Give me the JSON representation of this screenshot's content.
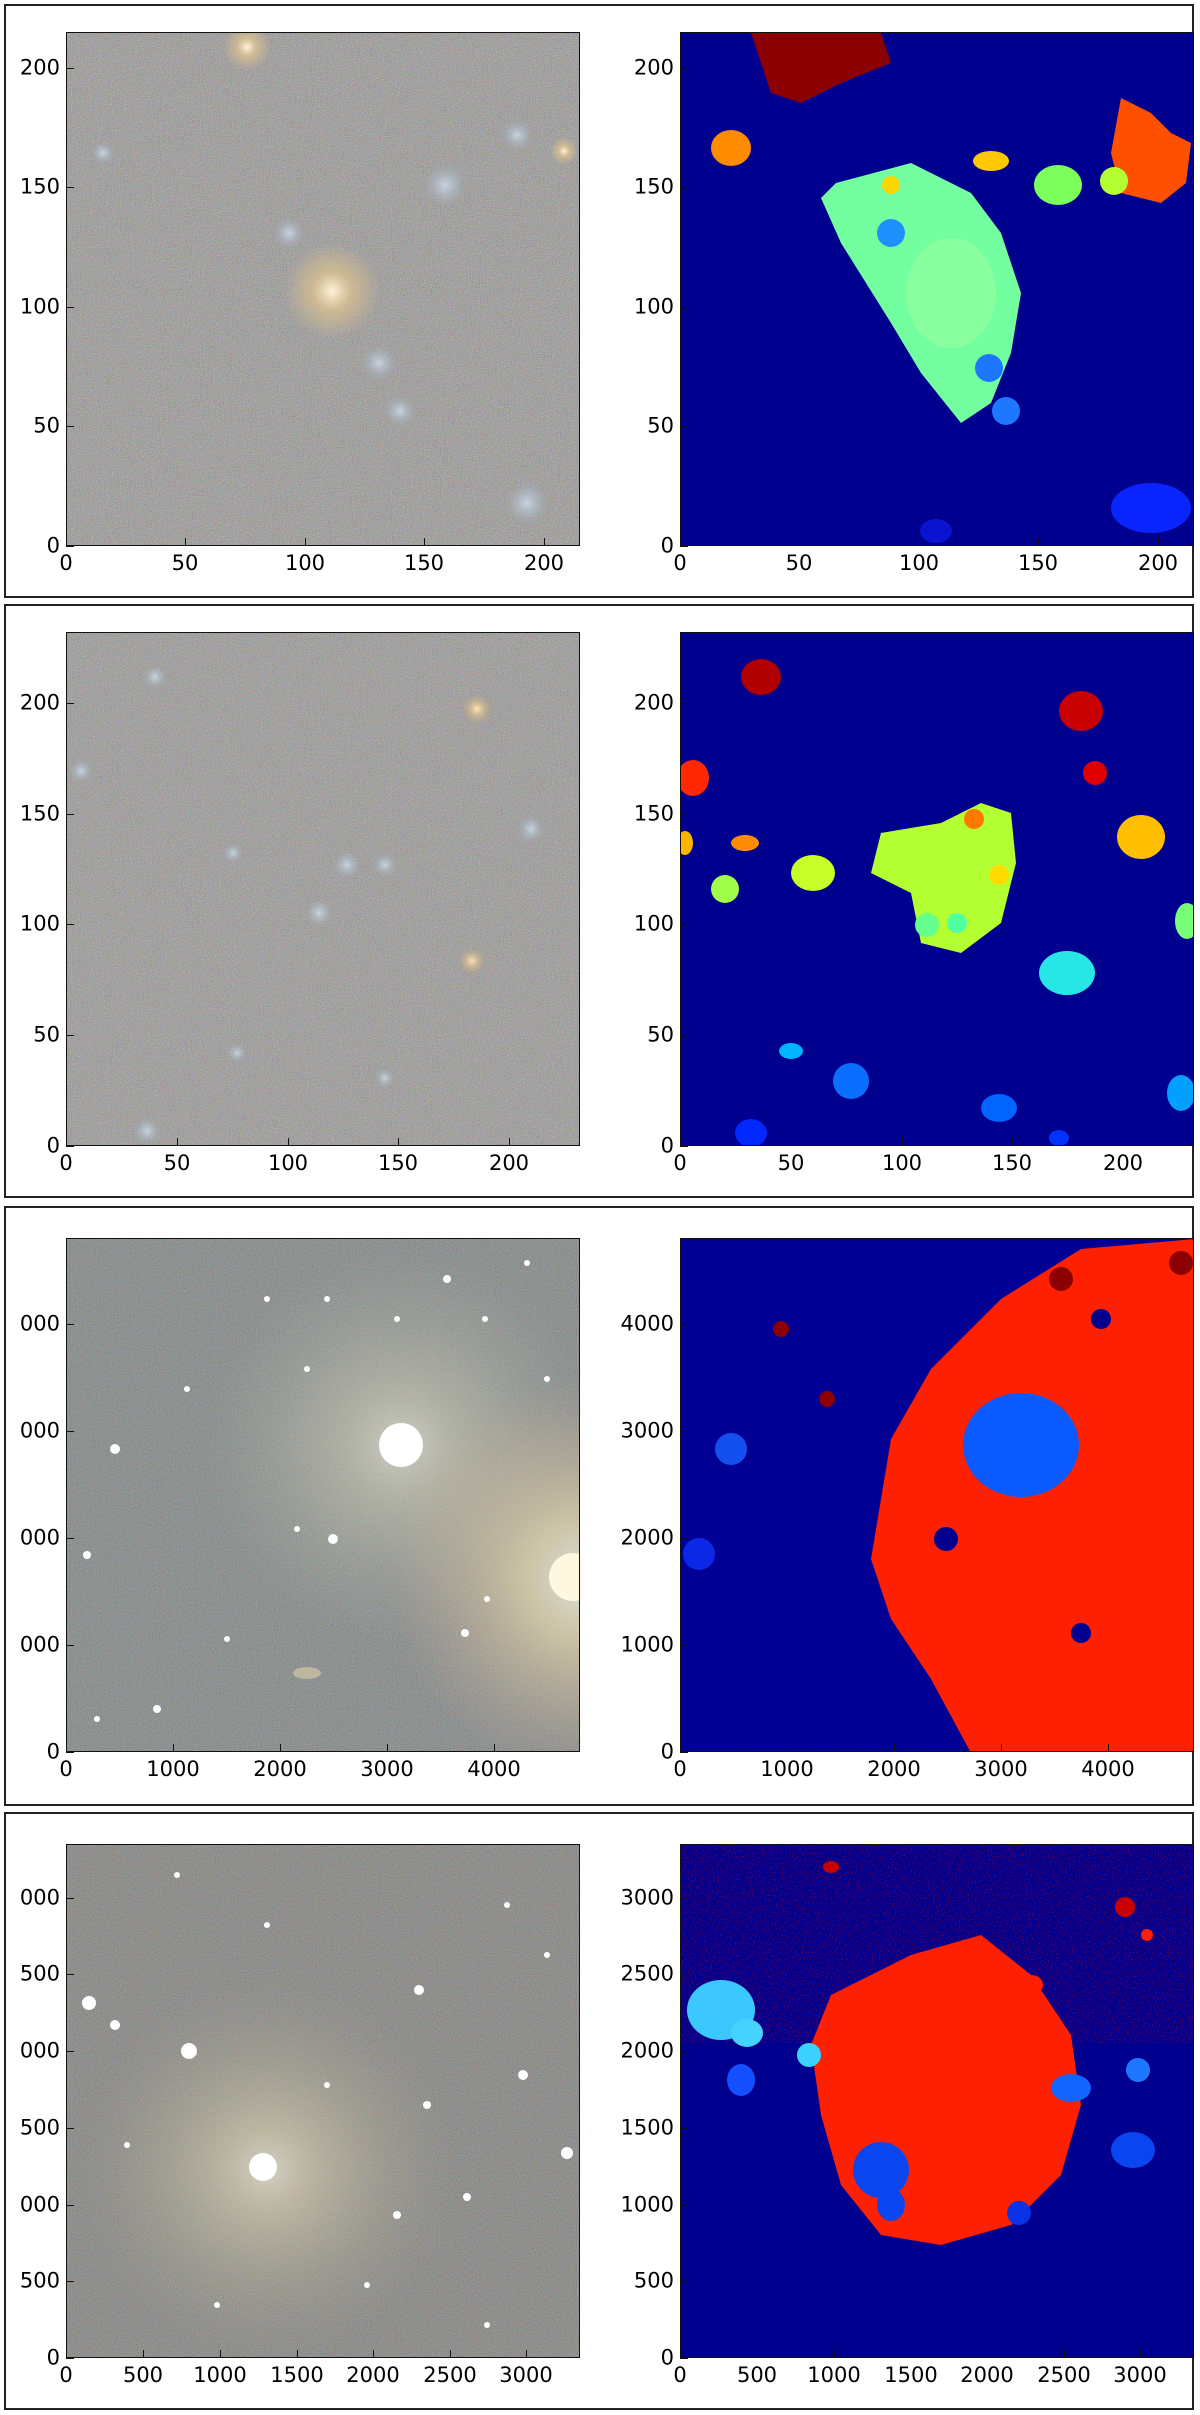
{
  "chart_data": [
    {
      "type": "image",
      "panel": 1,
      "left_xticks": [
        "0",
        "50",
        "100",
        "150",
        "200"
      ],
      "left_yticks": [
        "0",
        "50",
        "100",
        "150",
        "200"
      ],
      "right_xticks": [
        "0",
        "50",
        "100",
        "150",
        "200"
      ],
      "right_yticks": [
        "0",
        "50",
        "100",
        "150",
        "200"
      ],
      "xlim": [
        0,
        215
      ],
      "ylim": [
        0,
        215
      ]
    },
    {
      "type": "image",
      "panel": 2,
      "left_xticks": [
        "0",
        "50",
        "100",
        "150",
        "200"
      ],
      "left_yticks": [
        "0",
        "50",
        "100",
        "150",
        "200"
      ],
      "right_xticks": [
        "0",
        "50",
        "100",
        "150",
        "200"
      ],
      "right_yticks": [
        "0",
        "50",
        "100",
        "150",
        "200"
      ],
      "xlim": [
        0,
        232
      ],
      "ylim": [
        0,
        232
      ]
    },
    {
      "type": "image",
      "panel": 3,
      "left_xticks": [
        "0",
        "1000",
        "2000",
        "3000",
        "4000"
      ],
      "left_yticks": [
        "0",
        "000",
        "000",
        "000",
        "000"
      ],
      "right_xticks": [
        "0",
        "1000",
        "2000",
        "3000",
        "4000"
      ],
      "right_yticks": [
        "0",
        "1000",
        "2000",
        "3000",
        "4000"
      ],
      "xlim": [
        0,
        4800
      ],
      "ylim": [
        0,
        4800
      ]
    },
    {
      "type": "image",
      "panel": 4,
      "left_xticks": [
        "0",
        "500",
        "1000",
        "1500",
        "2000",
        "2500",
        "3000"
      ],
      "left_yticks": [
        "0",
        "500",
        "000",
        "500",
        "000",
        "500",
        "000"
      ],
      "right_xticks": [
        "0",
        "500",
        "1000",
        "1500",
        "2000",
        "2500",
        "3000"
      ],
      "right_yticks": [
        "0",
        "500",
        "1000",
        "1500",
        "2000",
        "2500",
        "3000"
      ],
      "xlim": [
        0,
        3350
      ],
      "ylim": [
        0,
        3350
      ]
    }
  ]
}
